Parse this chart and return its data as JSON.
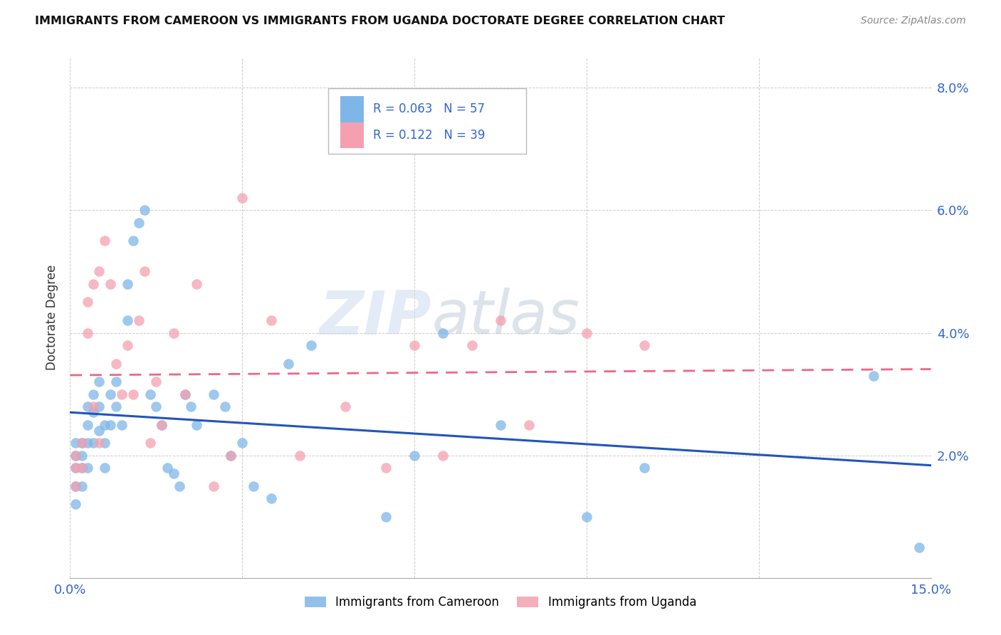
{
  "title": "IMMIGRANTS FROM CAMEROON VS IMMIGRANTS FROM UGANDA DOCTORATE DEGREE CORRELATION CHART",
  "source": "Source: ZipAtlas.com",
  "ylabel": "Doctorate Degree",
  "xlim": [
    0.0,
    0.15
  ],
  "ylim": [
    0.0,
    0.085
  ],
  "xtick_vals": [
    0.0,
    0.03,
    0.06,
    0.09,
    0.12,
    0.15
  ],
  "xtick_labels": [
    "0.0%",
    "",
    "",
    "",
    "",
    "15.0%"
  ],
  "ytick_vals": [
    0.0,
    0.02,
    0.04,
    0.06,
    0.08
  ],
  "ytick_labels": [
    "",
    "2.0%",
    "4.0%",
    "6.0%",
    "8.0%"
  ],
  "legend1_label": "Immigrants from Cameroon",
  "legend2_label": "Immigrants from Uganda",
  "R1": "0.063",
  "N1": "57",
  "R2": "0.122",
  "N2": "39",
  "color_cameroon": "#7EB6E8",
  "color_uganda": "#F4A0B0",
  "trendline_color_cameroon": "#2255BB",
  "trendline_color_uganda": "#EE6688",
  "watermark_zip": "ZIP",
  "watermark_atlas": "atlas",
  "cameroon_x": [
    0.001,
    0.001,
    0.001,
    0.001,
    0.001,
    0.002,
    0.002,
    0.002,
    0.002,
    0.003,
    0.003,
    0.003,
    0.003,
    0.004,
    0.004,
    0.004,
    0.005,
    0.005,
    0.005,
    0.006,
    0.006,
    0.006,
    0.007,
    0.007,
    0.008,
    0.008,
    0.009,
    0.01,
    0.01,
    0.011,
    0.012,
    0.013,
    0.014,
    0.015,
    0.016,
    0.017,
    0.018,
    0.019,
    0.02,
    0.021,
    0.022,
    0.025,
    0.027,
    0.028,
    0.03,
    0.032,
    0.035,
    0.038,
    0.042,
    0.055,
    0.06,
    0.065,
    0.075,
    0.09,
    0.1,
    0.14,
    0.148
  ],
  "cameroon_y": [
    0.02,
    0.022,
    0.018,
    0.015,
    0.012,
    0.022,
    0.02,
    0.018,
    0.015,
    0.028,
    0.025,
    0.022,
    0.018,
    0.03,
    0.027,
    0.022,
    0.032,
    0.028,
    0.024,
    0.025,
    0.022,
    0.018,
    0.03,
    0.025,
    0.032,
    0.028,
    0.025,
    0.048,
    0.042,
    0.055,
    0.058,
    0.06,
    0.03,
    0.028,
    0.025,
    0.018,
    0.017,
    0.015,
    0.03,
    0.028,
    0.025,
    0.03,
    0.028,
    0.02,
    0.022,
    0.015,
    0.013,
    0.035,
    0.038,
    0.01,
    0.02,
    0.04,
    0.025,
    0.01,
    0.018,
    0.033,
    0.005
  ],
  "uganda_x": [
    0.001,
    0.001,
    0.001,
    0.002,
    0.002,
    0.003,
    0.003,
    0.004,
    0.004,
    0.005,
    0.005,
    0.006,
    0.007,
    0.008,
    0.009,
    0.01,
    0.011,
    0.012,
    0.013,
    0.014,
    0.015,
    0.016,
    0.018,
    0.02,
    0.022,
    0.025,
    0.028,
    0.03,
    0.035,
    0.04,
    0.048,
    0.055,
    0.06,
    0.065,
    0.07,
    0.075,
    0.08,
    0.09,
    0.1
  ],
  "uganda_y": [
    0.02,
    0.018,
    0.015,
    0.022,
    0.018,
    0.045,
    0.04,
    0.048,
    0.028,
    0.05,
    0.022,
    0.055,
    0.048,
    0.035,
    0.03,
    0.038,
    0.03,
    0.042,
    0.05,
    0.022,
    0.032,
    0.025,
    0.04,
    0.03,
    0.048,
    0.015,
    0.02,
    0.062,
    0.042,
    0.02,
    0.028,
    0.018,
    0.038,
    0.02,
    0.038,
    0.042,
    0.025,
    0.04,
    0.038
  ]
}
